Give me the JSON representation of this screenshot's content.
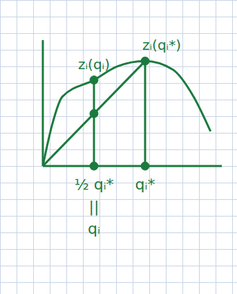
{
  "chart_data": {
    "type": "line",
    "color": "#1b7a3e",
    "series": [
      {
        "x": [
          0,
          0.18,
          0.38,
          1,
          1.46,
          2,
          2.54,
          2.95,
          3.28
        ],
        "values": [
          0,
          3.9,
          6.6,
          8.2,
          9.5,
          10,
          9.2,
          6.6,
          3.3
        ],
        "line_style": "solid",
        "marker": "none"
      },
      {
        "x": [
          0,
          2
        ],
        "values": [
          0,
          10
        ],
        "line_style": "solid",
        "marker": "none"
      }
    ],
    "xlim": [
      0,
      3.5
    ],
    "ylim": [
      0,
      12
    ],
    "xticks": [
      {
        "value": 1,
        "label": "½ qᵢ*"
      },
      {
        "value": 2,
        "label": "qᵢ*"
      }
    ],
    "yticks": [],
    "tick_labels": "x",
    "drop_lines": [
      1,
      2
    ],
    "points": [
      {
        "x": 1,
        "y": 8.2
      },
      {
        "x": 1,
        "y": 5
      },
      {
        "x": 2,
        "y": 10
      },
      {
        "x": 1,
        "y": 0
      },
      {
        "x": 2,
        "y": 0
      }
    ],
    "marker": "dot",
    "annotations": [
      {
        "text": "zᵢ(qᵢ)",
        "x": 1,
        "y": 8.2,
        "anchor": "above"
      },
      {
        "text": "zᵢ(qᵢ*)",
        "x": 2,
        "y": 10,
        "anchor": "above_right"
      },
      {
        "text": "||",
        "x": 1,
        "anchor": "below_axis"
      },
      {
        "text": "qᵢ",
        "x": 1,
        "anchor": "below_axis"
      }
    ]
  }
}
